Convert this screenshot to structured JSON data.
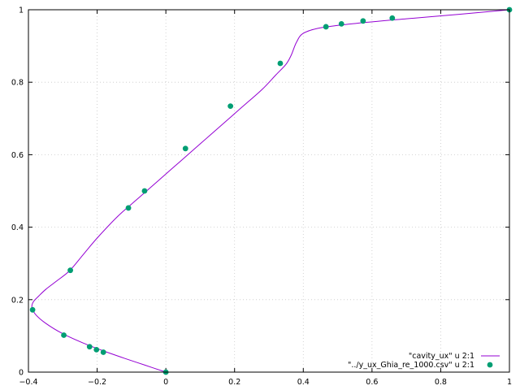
{
  "chart_data": {
    "type": "line",
    "xlim": [
      -0.4,
      1
    ],
    "ylim": [
      0,
      1
    ],
    "x_ticks": [
      -0.4,
      -0.2,
      0,
      0.2,
      0.4,
      0.6,
      0.8,
      1
    ],
    "y_ticks": [
      0,
      0.2,
      0.4,
      0.6,
      0.8,
      1
    ],
    "x_tick_labels": [
      "−0.4",
      "−0.2",
      "0",
      "0.2",
      "0.4",
      "0.6",
      "0.8",
      "1"
    ],
    "y_tick_labels": [
      "0",
      "0.2",
      "0.4",
      "0.6",
      "0.8",
      "1"
    ],
    "grid": true,
    "legend_position": "bottom-right",
    "series": [
      {
        "name": "\"cavity_ux\" u 2:1",
        "style": "line",
        "color": "#9400d3",
        "x": [
          0.0,
          -0.06,
          -0.12,
          -0.18,
          -0.24,
          -0.3,
          -0.35,
          -0.38,
          -0.39,
          -0.385,
          -0.37,
          -0.35,
          -0.32,
          -0.28,
          -0.24,
          -0.2,
          -0.14,
          -0.08,
          -0.02,
          0.04,
          0.1,
          0.16,
          0.22,
          0.28,
          0.32,
          0.35,
          0.365,
          0.38,
          0.4,
          0.45,
          0.55,
          0.7,
          0.85,
          1.0
        ],
        "y": [
          0.0,
          0.019,
          0.038,
          0.058,
          0.08,
          0.106,
          0.135,
          0.16,
          0.18,
          0.195,
          0.21,
          0.228,
          0.25,
          0.28,
          0.325,
          0.37,
          0.43,
          0.48,
          0.53,
          0.58,
          0.63,
          0.68,
          0.73,
          0.78,
          0.82,
          0.85,
          0.875,
          0.91,
          0.935,
          0.95,
          0.962,
          0.975,
          0.987,
          1.0
        ]
      },
      {
        "name": "\"../y_ux_Ghia_re_1000.csv\" u 2:1",
        "style": "points",
        "color": "#009e73",
        "x": [
          0.0,
          -0.182,
          -0.202,
          -0.222,
          -0.297,
          -0.388,
          -0.278,
          -0.109,
          -0.062,
          0.057,
          0.188,
          0.333,
          0.466,
          0.511,
          0.574,
          0.659,
          1.0
        ],
        "y": [
          0.0,
          0.055,
          0.062,
          0.07,
          0.102,
          0.172,
          0.281,
          0.453,
          0.5,
          0.617,
          0.734,
          0.852,
          0.953,
          0.961,
          0.969,
          0.977,
          1.0
        ]
      }
    ]
  }
}
